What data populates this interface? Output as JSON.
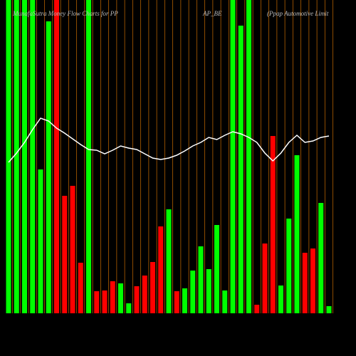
{
  "chart_data": {
    "type": "bar",
    "title_parts": [
      "MunafaSutra Money Flow Charts for PP",
      "AP_BE",
      "(Ppap Automotive  Limit"
    ],
    "categories": [
      null,
      null,
      null,
      null,
      null,
      null,
      null,
      null,
      null,
      null,
      null,
      null,
      null,
      null,
      null,
      null,
      null,
      null,
      null,
      null,
      null,
      null,
      null,
      null,
      null,
      null,
      null,
      null,
      null,
      null,
      null,
      null,
      null,
      null,
      null,
      null,
      null,
      null,
      null,
      null,
      null
    ],
    "values": [
      440,
      440,
      440,
      440,
      202,
      410,
      440,
      165,
      179,
      71,
      440,
      31,
      32,
      45,
      42,
      14,
      38,
      53,
      72,
      122,
      146,
      31,
      35,
      60,
      94,
      62,
      124,
      32,
      440,
      404,
      440,
      12,
      98,
      249,
      39,
      133,
      222,
      85,
      91,
      155,
      10
    ],
    "colors": [
      "#00ff00",
      "#00ff00",
      "#00ff00",
      "#00ff00",
      "#00ff00",
      "#00ff00",
      "#ff0000",
      "#ff0000",
      "#ff0000",
      "#ff0000",
      "#00ff00",
      "#ff0000",
      "#ff0000",
      "#ff0000",
      "#00ff00",
      "#00ff00",
      "#ff0000",
      "#ff0000",
      "#ff0000",
      "#ff0000",
      "#00ff00",
      "#ff0000",
      "#00ff00",
      "#00ff00",
      "#00ff00",
      "#00ff00",
      "#00ff00",
      "#00ff00",
      "#00ff00",
      "#00ff00",
      "#00ff00",
      "#ff0000",
      "#ff0000",
      "#ff0000",
      "#00ff00",
      "#00ff00",
      "#00ff00",
      "#ff0000",
      "#ff0000",
      "#00ff00",
      "#00ff00"
    ],
    "line": {
      "color": "#ffffff",
      "axis": "y2",
      "values": [
        212,
        225,
        240,
        258,
        274,
        270,
        260,
        253,
        245,
        237,
        230,
        229,
        224,
        229,
        235,
        232,
        230,
        224,
        218,
        216,
        218,
        222,
        228,
        235,
        240,
        247,
        244,
        250,
        255,
        252,
        247,
        240,
        225,
        214,
        225,
        240,
        250,
        240,
        242,
        247,
        249
      ]
    },
    "ylim": [
      0,
      440
    ],
    "y2lim": [
      0,
      440
    ],
    "grid_color": "#b25f00",
    "grid": true
  }
}
